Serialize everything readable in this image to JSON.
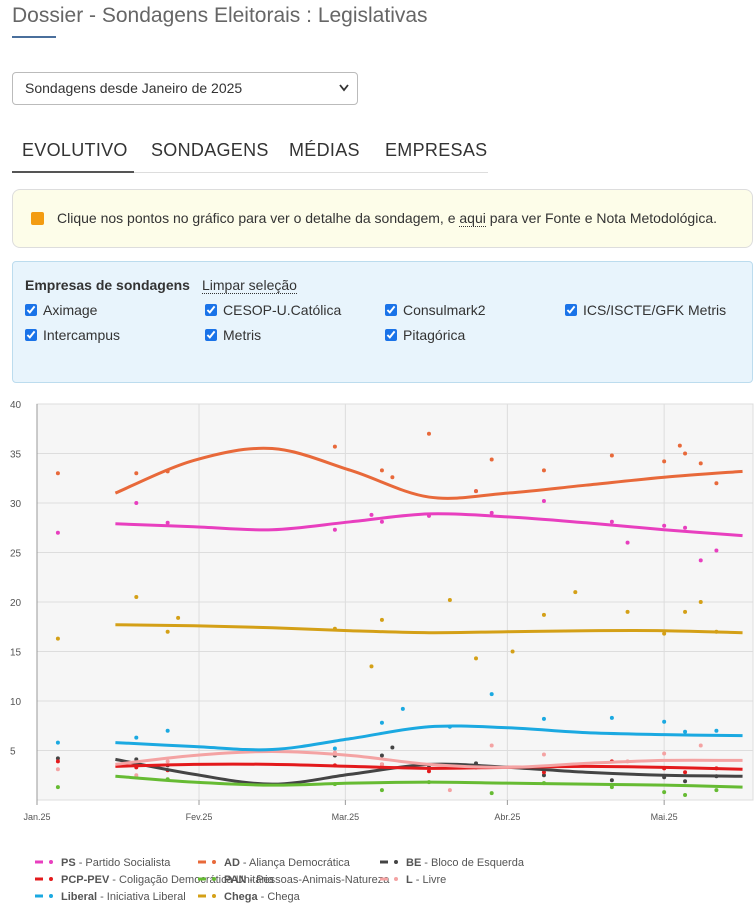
{
  "header": {
    "title": "Dossier - Sondagens Eleitorais : Legislativas"
  },
  "select": {
    "value": "Sondagens desde Janeiro de 2025"
  },
  "tabs": [
    "EVOLUTIVO",
    "SONDAGENS",
    "MÉDIAS",
    "EMPRESAS"
  ],
  "info": {
    "before": "Clique nos pontos no gráfico para ver o detalhe da sondagem, e",
    "link": "aqui",
    "after": "para ver Fonte e Nota Metodológica."
  },
  "filter": {
    "label": "Empresas de sondagens",
    "clear": "Limpar seleção",
    "companies": [
      "Aximage",
      "CESOP-U.Católica",
      "Consulmark2",
      "ICS/ISCTE/GFK Metris",
      "Intercampus",
      "Metris",
      "Pitagórica"
    ]
  },
  "chart_data": {
    "type": "line",
    "xlim": [
      0,
      137
    ],
    "xticks": [
      {
        "value": 0,
        "label": "Jan.25"
      },
      {
        "value": 31,
        "label": "Fev.25"
      },
      {
        "value": 59,
        "label": "Mar.25"
      },
      {
        "value": 90,
        "label": "Abr.25"
      },
      {
        "value": 120,
        "label": "Mai.25"
      }
    ],
    "ylim": [
      0,
      40
    ],
    "yticks": [
      5,
      10,
      15,
      20,
      25,
      30,
      35,
      40
    ],
    "grid": true,
    "x": [
      15,
      30,
      45,
      60,
      75,
      90,
      105,
      120,
      135
    ],
    "series": [
      {
        "name": "PS",
        "description": "- Partido Socialista",
        "color": "#e83fbf",
        "values": [
          27.9,
          27.6,
          27.3,
          28.1,
          28.9,
          28.6,
          28.0,
          27.3,
          26.7
        ],
        "poll_x": [
          4,
          19,
          25,
          57,
          64,
          66,
          75,
          84,
          87,
          97,
          110,
          113,
          120,
          124,
          127,
          130
        ],
        "poll_values": [
          27,
          30,
          28,
          27.3,
          28.8,
          28.1,
          28.7,
          31.2,
          29,
          30.2,
          28.1,
          26,
          27.7,
          27.5,
          24.2,
          25.2
        ]
      },
      {
        "name": "AD",
        "description": "- Aliança Democrática",
        "color": "#e8693a",
        "values": [
          31,
          34.3,
          35.5,
          33.3,
          30.6,
          31.0,
          31.8,
          32.6,
          33.2
        ],
        "poll_x": [
          4,
          19,
          25,
          57,
          66,
          68,
          75,
          84,
          87,
          97,
          110,
          120,
          123,
          124,
          127,
          130
        ],
        "poll_values": [
          33,
          33,
          33.2,
          35.7,
          33.3,
          32.6,
          37,
          31.2,
          34.4,
          33.3,
          34.8,
          34.2,
          35.8,
          35,
          34,
          32
        ]
      },
      {
        "name": "BE",
        "description": "- Bloco de Esquerda",
        "color": "#444444",
        "values": [
          4.1,
          2.6,
          1.6,
          2.6,
          3.6,
          3.3,
          2.8,
          2.5,
          2.4
        ],
        "poll_x": [
          4,
          19,
          25,
          57,
          66,
          68,
          75,
          84,
          97,
          110,
          120,
          124,
          130
        ],
        "poll_values": [
          4.2,
          4.1,
          3.5,
          4.5,
          4.5,
          5.3,
          3.3,
          3.7,
          2.5,
          2.0,
          2.3,
          1.9,
          2.4
        ]
      },
      {
        "name": "PCP-PEV",
        "description": "- Coligação Democrática Unitária",
        "color": "#e31a1c",
        "values": [
          3.4,
          3.6,
          3.6,
          3.4,
          3.2,
          3.3,
          3.4,
          3.3,
          3.1
        ],
        "poll_x": [
          4,
          19,
          25,
          57,
          66,
          75,
          84,
          97,
          110,
          120,
          124,
          130
        ],
        "poll_values": [
          3.9,
          3.3,
          3.0,
          3.5,
          3.6,
          2.9,
          3.3,
          2.8,
          3.9,
          3.2,
          2.8,
          3.2
        ]
      },
      {
        "name": "PAN",
        "description": "- Pessoas-Animais-Natureza",
        "color": "#66bb33",
        "values": [
          2.4,
          1.8,
          1.5,
          1.7,
          1.8,
          1.7,
          1.6,
          1.5,
          1.3
        ],
        "poll_x": [
          4,
          19,
          25,
          57,
          66,
          75,
          87,
          97,
          110,
          120,
          124,
          130
        ],
        "poll_values": [
          1.3,
          2.3,
          2.1,
          1.6,
          1.0,
          1.8,
          0.7,
          1.7,
          1.3,
          0.8,
          0.5,
          1.0
        ]
      },
      {
        "name": "L",
        "description": "- Livre",
        "color": "#f4a3a3",
        "values": [
          3.6,
          4.5,
          4.9,
          4.5,
          3.6,
          3.3,
          3.7,
          4.0,
          4.0
        ],
        "poll_x": [
          4,
          19,
          25,
          57,
          66,
          79,
          87,
          97,
          113,
          120,
          127
        ],
        "poll_values": [
          3.1,
          2.5,
          3.9,
          4.8,
          3.6,
          1.0,
          5.5,
          4.6,
          3.9,
          4.7,
          5.5
        ]
      },
      {
        "name": "Liberal",
        "description": "- Iniciativa Liberal",
        "color": "#1ba9e1",
        "values": [
          5.8,
          5.4,
          5.1,
          6.2,
          7.4,
          7.3,
          6.8,
          6.6,
          6.5
        ],
        "poll_x": [
          4,
          19,
          25,
          57,
          66,
          70,
          79,
          87,
          97,
          110,
          120,
          124,
          130
        ],
        "poll_values": [
          5.8,
          6.3,
          7,
          5.2,
          7.8,
          9.2,
          7.4,
          10.7,
          8.2,
          8.3,
          7.9,
          6.9,
          7
        ]
      },
      {
        "name": "Chega",
        "description": "- Chega",
        "color": "#d4a017",
        "values": [
          17.7,
          17.6,
          17.4,
          17.1,
          16.9,
          17.0,
          17.1,
          17.1,
          16.9
        ],
        "poll_x": [
          4,
          19,
          25,
          27,
          57,
          64,
          66,
          79,
          84,
          91,
          97,
          103,
          113,
          120,
          124,
          127,
          130
        ],
        "poll_values": [
          16.3,
          20.5,
          17,
          18.4,
          17.3,
          13.5,
          18.2,
          20.2,
          14.3,
          15,
          18.7,
          21,
          19,
          16.8,
          19,
          20,
          17
        ]
      }
    ]
  }
}
